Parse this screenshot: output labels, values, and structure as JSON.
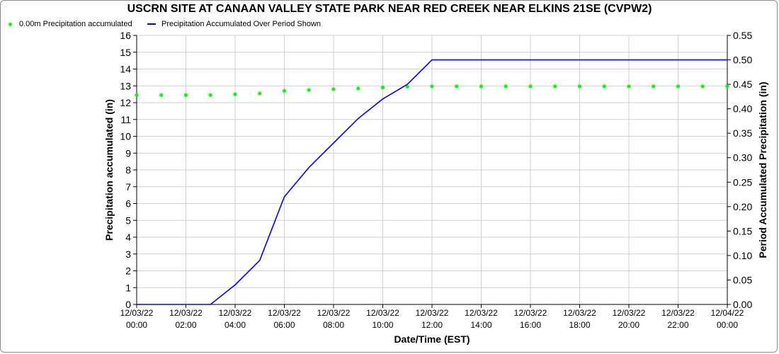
{
  "chart_data": {
    "type": "line",
    "title": "USCRN SITE AT CANAAN VALLEY STATE PARK NEAR RED CREEK NEAR ELKINS 21SE (CVPW2)",
    "xlabel": "Date/Time (EST)",
    "ylabel_left": "Precipitation accumulated (in)",
    "ylabel_right": "Period Accumulated Precipitation (in)",
    "x_ticks": [
      {
        "date": "12/03/22",
        "time": "00:00"
      },
      {
        "date": "12/03/22",
        "time": "02:00"
      },
      {
        "date": "12/03/22",
        "time": "04:00"
      },
      {
        "date": "12/03/22",
        "time": "06:00"
      },
      {
        "date": "12/03/22",
        "time": "08:00"
      },
      {
        "date": "12/03/22",
        "time": "10:00"
      },
      {
        "date": "12/03/22",
        "time": "12:00"
      },
      {
        "date": "12/03/22",
        "time": "14:00"
      },
      {
        "date": "12/03/22",
        "time": "16:00"
      },
      {
        "date": "12/03/22",
        "time": "18:00"
      },
      {
        "date": "12/03/22",
        "time": "20:00"
      },
      {
        "date": "12/03/22",
        "time": "22:00"
      },
      {
        "date": "12/04/22",
        "time": "00:00"
      }
    ],
    "xlim": [
      "12/03/22 00:00",
      "12/04/22 00:00"
    ],
    "ylim_left": [
      0,
      16
    ],
    "ylim_right": [
      0,
      0.55
    ],
    "y_ticks_left": [
      0,
      1,
      2,
      3,
      4,
      5,
      6,
      7,
      8,
      9,
      10,
      11,
      12,
      13,
      14,
      15,
      16
    ],
    "y_ticks_right": [
      "0.00",
      "0.05",
      "0.10",
      "0.15",
      "0.20",
      "0.25",
      "0.30",
      "0.35",
      "0.40",
      "0.45",
      "0.50",
      "0.55"
    ],
    "grid": true,
    "legend_position": "top-left",
    "series": [
      {
        "name": "0.00m Precipitation accumulated",
        "axis": "left",
        "style": "dots",
        "color": "#00ff00",
        "points": [
          {
            "t": "12/03/22 00:00",
            "v": 12.45
          },
          {
            "t": "12/03/22 01:00",
            "v": 12.45
          },
          {
            "t": "12/03/22 02:00",
            "v": 12.45
          },
          {
            "t": "12/03/22 03:00",
            "v": 12.45
          },
          {
            "t": "12/03/22 04:00",
            "v": 12.5
          },
          {
            "t": "12/03/22 05:00",
            "v": 12.55
          },
          {
            "t": "12/03/22 06:00",
            "v": 12.7
          },
          {
            "t": "12/03/22 07:00",
            "v": 12.75
          },
          {
            "t": "12/03/22 08:00",
            "v": 12.8
          },
          {
            "t": "12/03/22 09:00",
            "v": 12.85
          },
          {
            "t": "12/03/22 10:00",
            "v": 12.9
          },
          {
            "t": "12/03/22 11:00",
            "v": 12.95
          },
          {
            "t": "12/03/22 12:00",
            "v": 12.97
          },
          {
            "t": "12/03/22 13:00",
            "v": 12.97
          },
          {
            "t": "12/03/22 14:00",
            "v": 12.97
          },
          {
            "t": "12/03/22 15:00",
            "v": 12.97
          },
          {
            "t": "12/03/22 16:00",
            "v": 12.97
          },
          {
            "t": "12/03/22 17:00",
            "v": 12.97
          },
          {
            "t": "12/03/22 18:00",
            "v": 12.97
          },
          {
            "t": "12/03/22 19:00",
            "v": 12.97
          },
          {
            "t": "12/03/22 20:00",
            "v": 12.97
          },
          {
            "t": "12/03/22 21:00",
            "v": 12.97
          },
          {
            "t": "12/03/22 22:00",
            "v": 12.97
          },
          {
            "t": "12/03/22 23:00",
            "v": 12.97
          },
          {
            "t": "12/04/22 00:00",
            "v": 12.97
          }
        ]
      },
      {
        "name": "Precipitation Accumulated Over Period Shown",
        "axis": "right",
        "style": "line",
        "color": "#0000ff",
        "points": [
          {
            "t": "12/03/22 00:00",
            "v": 0.0
          },
          {
            "t": "12/03/22 01:00",
            "v": 0.0
          },
          {
            "t": "12/03/22 02:00",
            "v": 0.0
          },
          {
            "t": "12/03/22 03:00",
            "v": 0.0
          },
          {
            "t": "12/03/22 04:00",
            "v": 0.04
          },
          {
            "t": "12/03/22 05:00",
            "v": 0.09
          },
          {
            "t": "12/03/22 06:00",
            "v": 0.22
          },
          {
            "t": "12/03/22 07:00",
            "v": 0.28
          },
          {
            "t": "12/03/22 08:00",
            "v": 0.33
          },
          {
            "t": "12/03/22 09:00",
            "v": 0.38
          },
          {
            "t": "12/03/22 10:00",
            "v": 0.42
          },
          {
            "t": "12/03/22 11:00",
            "v": 0.45
          },
          {
            "t": "12/03/22 12:00",
            "v": 0.5
          },
          {
            "t": "12/03/22 13:00",
            "v": 0.5
          },
          {
            "t": "12/03/22 14:00",
            "v": 0.5
          },
          {
            "t": "12/03/22 15:00",
            "v": 0.5
          },
          {
            "t": "12/03/22 16:00",
            "v": 0.5
          },
          {
            "t": "12/03/22 17:00",
            "v": 0.5
          },
          {
            "t": "12/03/22 18:00",
            "v": 0.5
          },
          {
            "t": "12/03/22 19:00",
            "v": 0.5
          },
          {
            "t": "12/03/22 20:00",
            "v": 0.5
          },
          {
            "t": "12/03/22 21:00",
            "v": 0.5
          },
          {
            "t": "12/03/22 22:00",
            "v": 0.5
          },
          {
            "t": "12/03/22 23:00",
            "v": 0.5
          },
          {
            "t": "12/04/22 00:00",
            "v": 0.5
          }
        ]
      }
    ]
  }
}
